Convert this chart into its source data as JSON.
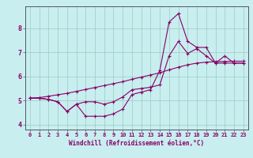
{
  "xlabel": "Windchill (Refroidissement éolien,°C)",
  "background_color": "#c8eef0",
  "line_color": "#880066",
  "grid_color": "#99ccbb",
  "spine_color": "#555566",
  "x_data": [
    0,
    1,
    2,
    3,
    4,
    5,
    6,
    7,
    8,
    9,
    10,
    11,
    12,
    13,
    14,
    15,
    16,
    17,
    18,
    19,
    20,
    21,
    22,
    23
  ],
  "line1_y": [
    5.1,
    5.1,
    5.05,
    4.95,
    4.55,
    4.85,
    4.35,
    4.35,
    4.35,
    4.45,
    4.65,
    5.25,
    5.35,
    5.45,
    6.25,
    8.25,
    8.6,
    7.45,
    7.2,
    7.2,
    6.55,
    6.85,
    6.55,
    6.55
  ],
  "line2_y": [
    5.1,
    5.1,
    5.05,
    4.95,
    4.55,
    4.85,
    4.95,
    4.95,
    4.85,
    4.95,
    5.15,
    5.45,
    5.5,
    5.55,
    5.65,
    6.85,
    7.45,
    6.95,
    7.15,
    6.85,
    6.55,
    6.55,
    6.55,
    6.55
  ],
  "line3_y": [
    5.1,
    5.12,
    5.18,
    5.24,
    5.3,
    5.38,
    5.46,
    5.54,
    5.62,
    5.7,
    5.78,
    5.88,
    5.97,
    6.06,
    6.15,
    6.27,
    6.38,
    6.48,
    6.55,
    6.59,
    6.61,
    6.62,
    6.63,
    6.63
  ],
  "ylim": [
    3.8,
    8.9
  ],
  "xlim": [
    -0.5,
    23.5
  ],
  "yticks": [
    4,
    5,
    6,
    7,
    8
  ],
  "xticks": [
    0,
    1,
    2,
    3,
    4,
    5,
    6,
    7,
    8,
    9,
    10,
    11,
    12,
    13,
    14,
    15,
    16,
    17,
    18,
    19,
    20,
    21,
    22,
    23
  ],
  "tick_fontsize": 5,
  "label_fontsize": 5.5
}
